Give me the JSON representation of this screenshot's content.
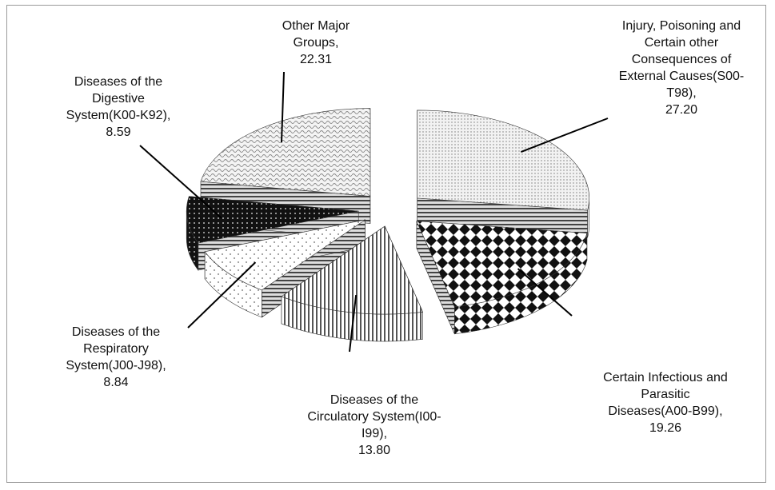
{
  "chart_data": {
    "type": "pie3d",
    "categories": [
      "Injury, Poisoning and Certain other Consequences of External Causes(S00-T98)",
      "Certain Infectious and Parasitic Diseases(A00-B99)",
      "Diseases of the Circulatory System(I00-I99)",
      "Diseases of the Respiratory System(J00-J98)",
      "Diseases of the Digestive System(K00-K92)",
      "Other Major Groups"
    ],
    "values": [
      27.2,
      19.26,
      13.8,
      8.84,
      8.59,
      22.31
    ],
    "value_labels": [
      "27.20",
      "19.26",
      "13.80",
      "8.84",
      "8.59",
      "22.31"
    ],
    "label_separator": ","
  }
}
